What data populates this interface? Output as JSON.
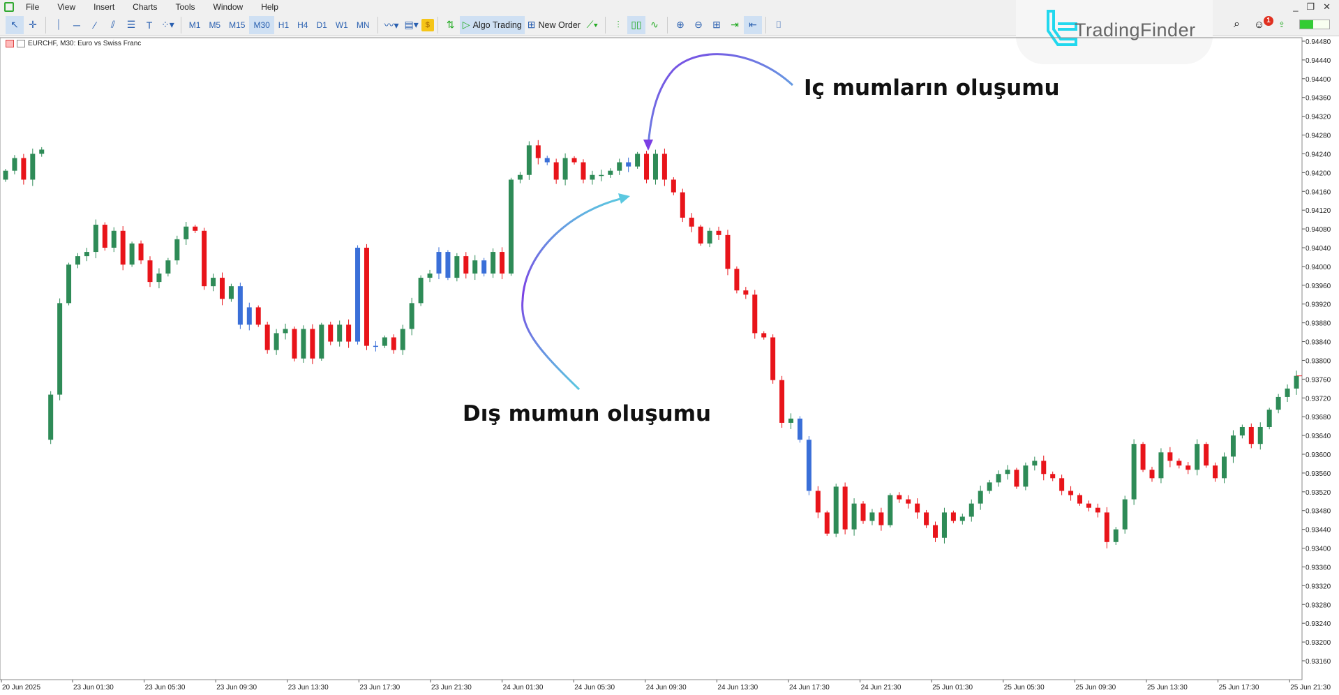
{
  "menu": [
    "File",
    "View",
    "Insert",
    "Charts",
    "Tools",
    "Window",
    "Help"
  ],
  "toolbar": {
    "tools": [
      "cursor-icon",
      "crosshair-icon",
      "vertical-line-icon",
      "horizontal-line-icon",
      "trendline-icon",
      "channel-icon",
      "fibonacci-icon",
      "text-icon",
      "shapes-icon"
    ],
    "timeframes": [
      "M1",
      "M5",
      "M15",
      "M30",
      "H1",
      "H4",
      "D1",
      "W1",
      "MN"
    ],
    "selected_timeframe": "M30",
    "algo_trading": "Algo Trading",
    "new_order": "New Order"
  },
  "logo": "TradingFinder",
  "notification_count": "1",
  "chart_title": "EURCHF, M30:  Euro vs Swiss Franc",
  "annotations": {
    "inside": "Iç mumların oluşumu",
    "outside": "Dış mumun oluşumu"
  },
  "colors": {
    "bull": "#2e8b57",
    "bear": "#e8141a",
    "inside": "#3a6fd8",
    "arrow_start": "#5bc8e0",
    "arrow_end": "#7b3fe4"
  },
  "chart_data": {
    "type": "candlestick",
    "symbol": "EURCHF",
    "timeframe": "M30",
    "ylim": [
      0.9316,
      0.9448
    ],
    "price_ticks": [
      "0.94480",
      "0.94440",
      "0.94400",
      "0.94360",
      "0.94320",
      "0.94280",
      "0.94240",
      "0.94200",
      "0.94160",
      "0.94120",
      "0.94080",
      "0.94040",
      "0.94000",
      "0.93960",
      "0.93920",
      "0.93880",
      "0.93840",
      "0.93800",
      "0.93760",
      "0.93720",
      "0.93680",
      "0.93640",
      "0.93600",
      "0.93560",
      "0.93520",
      "0.93480",
      "0.93440",
      "0.93400",
      "0.93360",
      "0.93320",
      "0.93280",
      "0.93240",
      "0.93200",
      "0.93160"
    ],
    "time_ticks": [
      "20 Jun 2025",
      "23 Jun 01:30",
      "23 Jun 05:30",
      "23 Jun 09:30",
      "23 Jun 13:30",
      "23 Jun 17:30",
      "23 Jun 21:30",
      "24 Jun 01:30",
      "24 Jun 05:30",
      "24 Jun 09:30",
      "24 Jun 13:30",
      "24 Jun 17:30",
      "24 Jun 21:30",
      "25 Jun 01:30",
      "25 Jun 05:30",
      "25 Jun 09:30",
      "25 Jun 13:30",
      "25 Jun 17:30",
      "25 Jun 21:30"
    ],
    "first_open": 0.94185,
    "gap_open": {
      "index": 5,
      "open": 0.93631
    },
    "closes": [
      0.94204,
      0.94231,
      0.94185,
      0.9424,
      0.94249,
      0.93727,
      0.93922,
      0.94004,
      0.94022,
      0.94031,
      0.94089,
      0.9404,
      0.94076,
      0.94004,
      0.94049,
      0.94013,
      0.93967,
      0.93985,
      0.94013,
      0.94058,
      0.94085,
      0.94076,
      0.93958,
      0.93976,
      0.93931,
      0.93958,
      0.93876,
      0.93913,
      0.93876,
      0.93822,
      0.93858,
      0.93867,
      0.93804,
      0.93867,
      0.93804,
      0.93876,
      0.9384,
      0.93876,
      0.9384,
      0.9404,
      0.93831,
      0.93831,
      0.93849,
      0.93822,
      0.93867,
      0.93922,
      0.93976,
      0.93985,
      0.94031,
      0.93976,
      0.94022,
      0.93985,
      0.94013,
      0.93985,
      0.94031,
      0.93985,
      0.94185,
      0.94195,
      0.94258,
      0.94231,
      0.94222,
      0.94185,
      0.94231,
      0.94222,
      0.94185,
      0.94195,
      0.94195,
      0.94204,
      0.94222,
      0.94213,
      0.9424,
      0.94185,
      0.9424,
      0.94185,
      0.94158,
      0.94104,
      0.94085,
      0.94049,
      0.94076,
      0.94067,
      0.93995,
      0.93949,
      0.9394,
      0.93858,
      0.93849,
      0.93758,
      0.93667,
      0.93676,
      0.93631,
      0.93522,
      0.93476,
      0.93431,
      0.93531,
      0.9344,
      0.93495,
      0.93458,
      0.93476,
      0.93449,
      0.93513,
      0.93504,
      0.93495,
      0.93476,
      0.93449,
      0.93422,
      0.93476,
      0.93458,
      0.93467,
      0.93495,
      0.93522,
      0.9354,
      0.93558,
      0.93567,
      0.93531,
      0.93576,
      0.93586,
      0.93558,
      0.93549,
      0.93522,
      0.93513,
      0.93495,
      0.93486,
      0.93476,
      0.93413,
      0.9344,
      0.93504,
      0.93622,
      0.93567,
      0.93549,
      0.93604,
      0.93586,
      0.93576,
      0.93567,
      0.93622,
      0.93576,
      0.93549,
      0.93595,
      0.9364,
      0.93658,
      0.93622,
      0.93658,
      0.93695,
      0.93722,
      0.9374,
      0.93767
    ],
    "inside_bar_indices": [
      26,
      27,
      39,
      41,
      48,
      49,
      53,
      60,
      69,
      88,
      89
    ],
    "last_price": "0.93767"
  }
}
